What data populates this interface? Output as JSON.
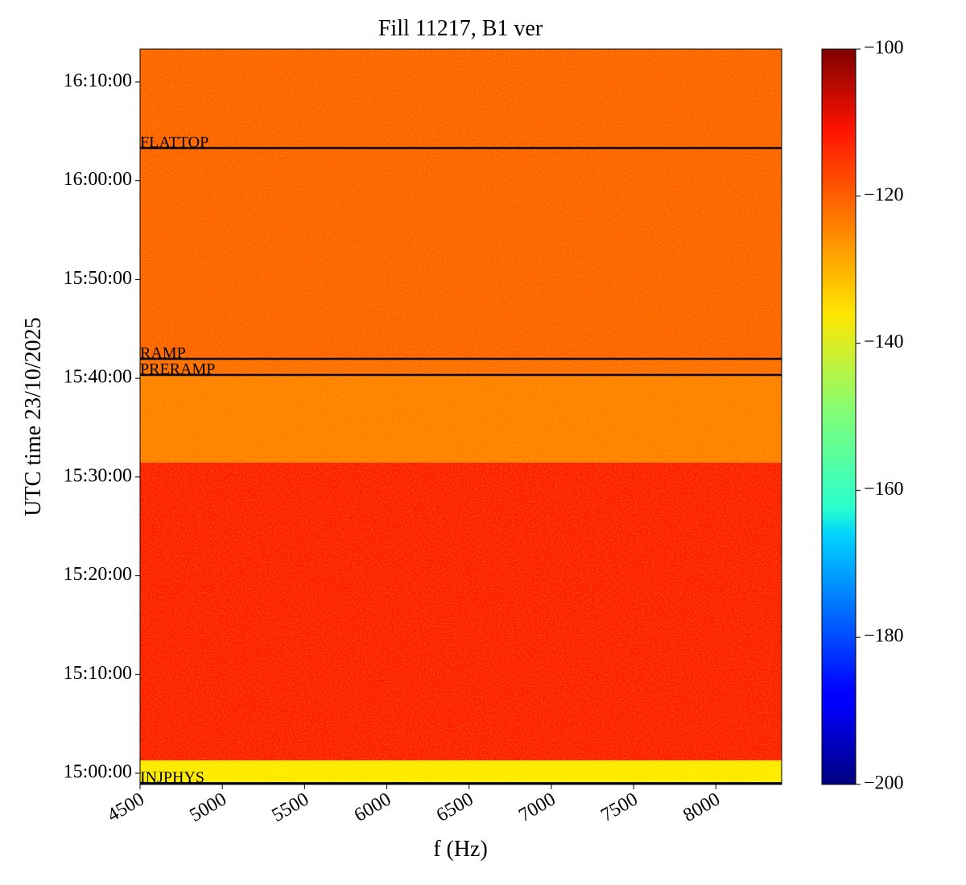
{
  "chart_data": {
    "type": "heatmap",
    "title": "Fill 11217, B1 ver",
    "xlabel": "f (Hz)",
    "ylabel": "UTC time 23/10/2025",
    "xlim": [
      4500,
      8400
    ],
    "xticks": [
      4500,
      5000,
      5500,
      6000,
      6500,
      7000,
      7500,
      8000
    ],
    "ylim": [
      53932,
      58400
    ],
    "yticks": [
      {
        "value": 54000,
        "label": "15:00:00"
      },
      {
        "value": 54600,
        "label": "15:10:00"
      },
      {
        "value": 55200,
        "label": "15:20:00"
      },
      {
        "value": 55800,
        "label": "15:30:00"
      },
      {
        "value": 56400,
        "label": "15:40:00"
      },
      {
        "value": 57000,
        "label": "15:50:00"
      },
      {
        "value": 57600,
        "label": "16:00:00"
      },
      {
        "value": 58200,
        "label": "16:10:00"
      }
    ],
    "clim": [
      -200,
      -100
    ],
    "cticks": [
      {
        "value": -100,
        "label": "−100"
      },
      {
        "value": -120,
        "label": "−120"
      },
      {
        "value": -140,
        "label": "−140"
      },
      {
        "value": -160,
        "label": "−160"
      },
      {
        "value": -180,
        "label": "−180"
      },
      {
        "value": -200,
        "label": "−200"
      }
    ],
    "colormap": "jet",
    "bands": [
      {
        "from": 53932,
        "to": 54078,
        "level": -136
      },
      {
        "from": 54078,
        "to": 55888,
        "level": -115
      },
      {
        "from": 55888,
        "to": 56420,
        "level": -125
      },
      {
        "from": 56420,
        "to": 56518,
        "level": -123
      },
      {
        "from": 56518,
        "to": 58400,
        "level": -122
      }
    ],
    "events": [
      {
        "label": "INJPHYS",
        "time": 53940
      },
      {
        "label": "PRERAMP",
        "time": 56420
      },
      {
        "label": "RAMP",
        "time": 56518
      },
      {
        "label": "FLATTOP",
        "time": 57799
      }
    ]
  }
}
